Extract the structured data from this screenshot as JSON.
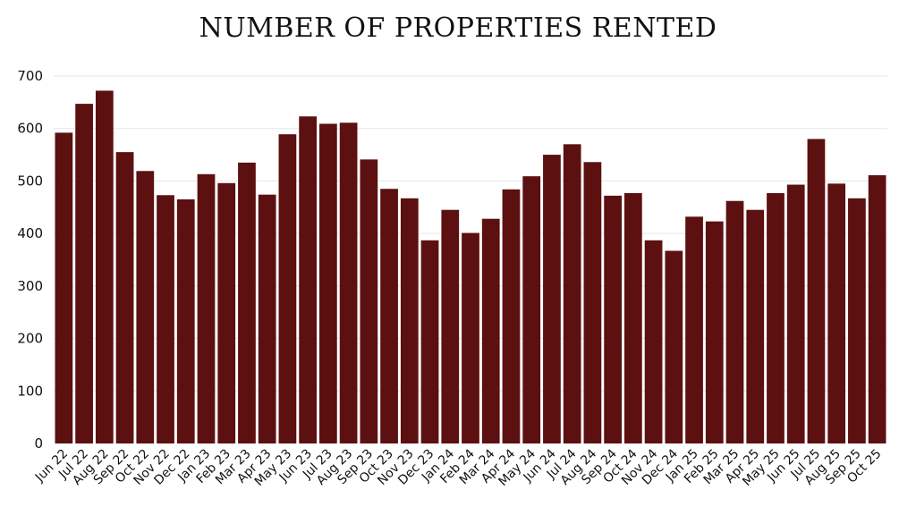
{
  "chart_data": {
    "type": "bar",
    "title": "NUMBER OF PROPERTIES RENTED",
    "xlabel": "",
    "ylabel": "",
    "ylim": [
      0,
      700
    ],
    "yticks": [
      0,
      100,
      200,
      300,
      400,
      500,
      600,
      700
    ],
    "grid": true,
    "legend": "none",
    "bar_color": "#5c1010",
    "grid_color": "#e6e6e6",
    "categories": [
      "Jun 22",
      "Jul 22",
      "Aug 22",
      "Sep 22",
      "Oct 22",
      "Nov 22",
      "Dec 22",
      "Jan 23",
      "Feb 23",
      "Mar 23",
      "Apr 23",
      "May 23",
      "Jun 23",
      "Jul 23",
      "Aug 23",
      "Sep 23",
      "Oct 23",
      "Nov 23",
      "Dec 23",
      "Jan 24",
      "Feb 24",
      "Mar 24",
      "Apr 24",
      "May 24",
      "Jun 24",
      "Jul 24",
      "Aug 24",
      "Sep 24",
      "Oct 24",
      "Nov 24",
      "Dec 24",
      "Jan 25",
      "Feb 25",
      "Mar 25",
      "Apr 25",
      "May 25",
      "Jun 25",
      "Jul 25",
      "Aug 25",
      "Sep 25",
      "Oct 25"
    ],
    "values": [
      592,
      647,
      672,
      555,
      519,
      473,
      465,
      513,
      496,
      535,
      474,
      589,
      623,
      609,
      611,
      541,
      485,
      467,
      387,
      445,
      401,
      428,
      484,
      509,
      550,
      570,
      536,
      472,
      477,
      387,
      367,
      432,
      423,
      462,
      445,
      477,
      493,
      580,
      495,
      467,
      511
    ]
  }
}
